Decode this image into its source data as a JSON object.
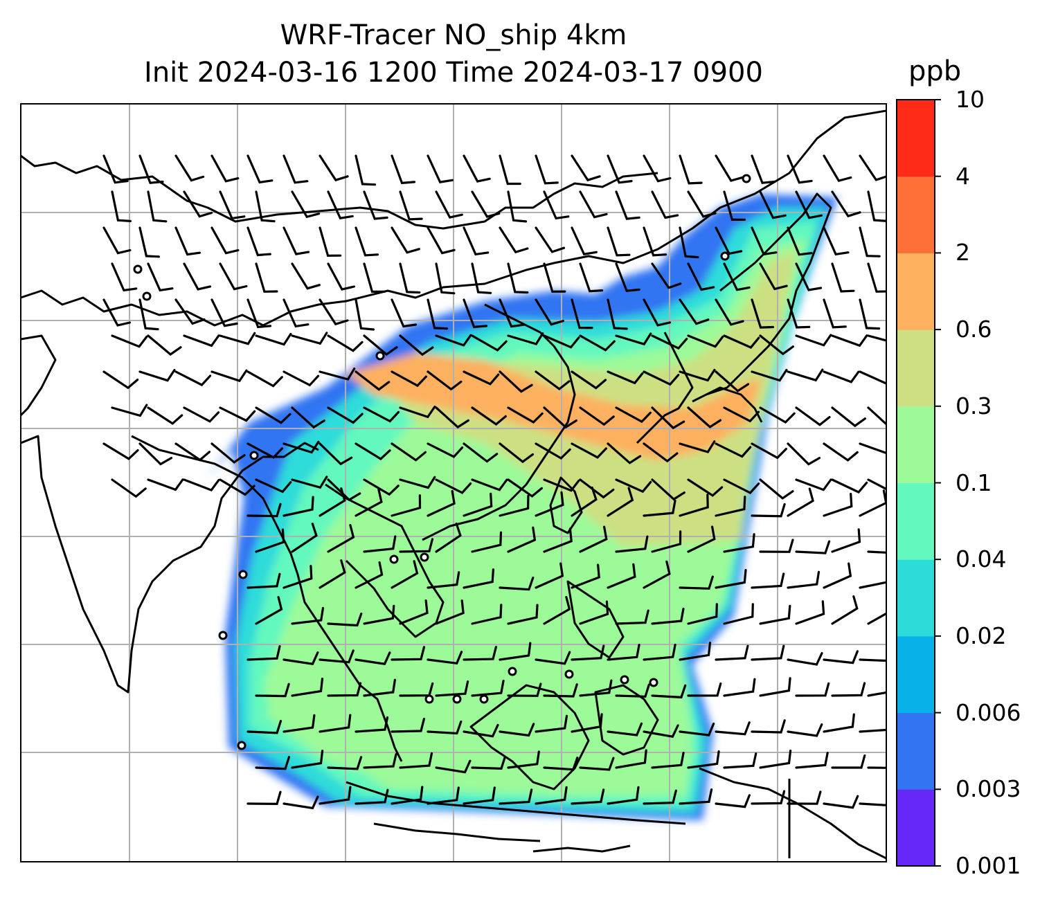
{
  "figure": {
    "title_line1": "WRF-Tracer NO_ship 4km",
    "title_line2": "Init 2024-03-16 1200 Time 2024-03-17 0900"
  },
  "colorbar": {
    "unit": "ppb",
    "levels": [
      "0.001",
      "0.003",
      "0.006",
      "0.02",
      "0.04",
      "0.1",
      "0.3",
      "0.6",
      "2",
      "4",
      "10"
    ],
    "colors": [
      "#6528f7",
      "#3274f2",
      "#07b1e9",
      "#2ddcd9",
      "#63f8be",
      "#9cfa99",
      "#cce083",
      "#fdb05e",
      "#fe7038",
      "#ff2a17"
    ]
  },
  "map": {
    "field": "NO_ship",
    "overlay": "wind barbs",
    "gridlines": true,
    "coastlines": true
  }
}
